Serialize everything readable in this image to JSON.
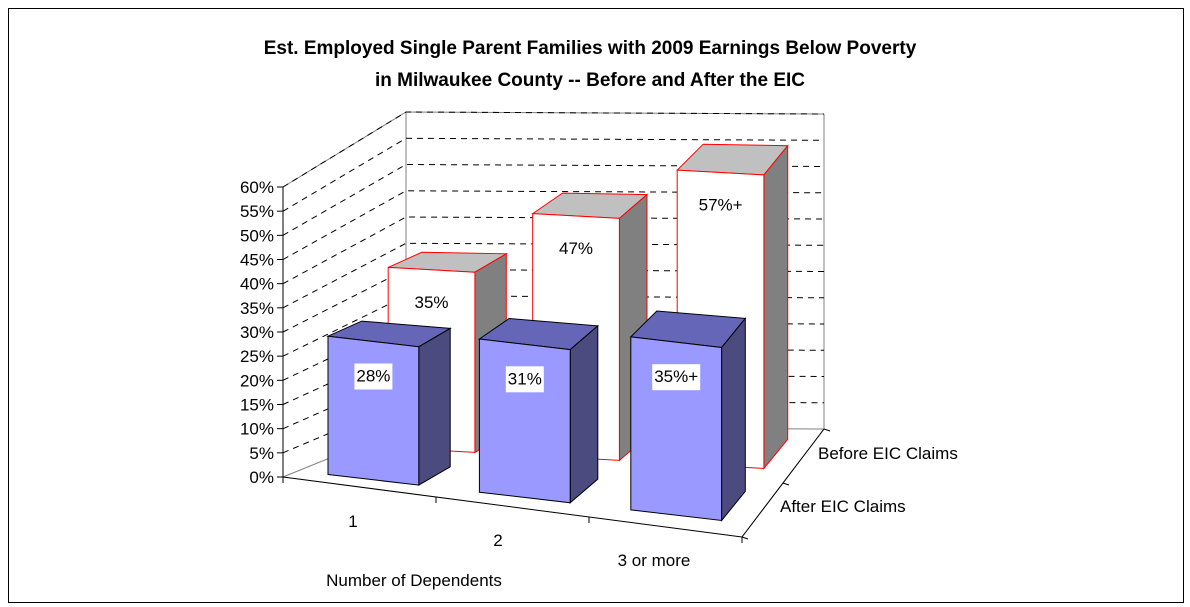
{
  "chart_data": {
    "type": "bar",
    "title_lines": [
      "Est. Employed Single Parent Families with 2009 Earnings Below Poverty",
      "in Milwaukee County -- Before and After the EIC"
    ],
    "xlabel": "Number of Dependents",
    "categories": [
      "1",
      "2",
      "3 or more"
    ],
    "ylim": [
      0,
      60
    ],
    "ytick_labels": [
      "0%",
      "5%",
      "10%",
      "15%",
      "20%",
      "25%",
      "30%",
      "35%",
      "40%",
      "45%",
      "50%",
      "55%",
      "60%"
    ],
    "series": [
      {
        "name": "After EIC Claims",
        "values": [
          28,
          31,
          35
        ],
        "data_labels": [
          "28%",
          "31%",
          "35%+"
        ],
        "color": "#9999ff"
      },
      {
        "name": "Before EIC Claims",
        "values": [
          35,
          47,
          57
        ],
        "data_labels": [
          "35%",
          "47%",
          "57%+"
        ],
        "color": "#ffffff",
        "edge_color": "#ff0000"
      }
    ],
    "grid": true,
    "is_3d": true
  }
}
